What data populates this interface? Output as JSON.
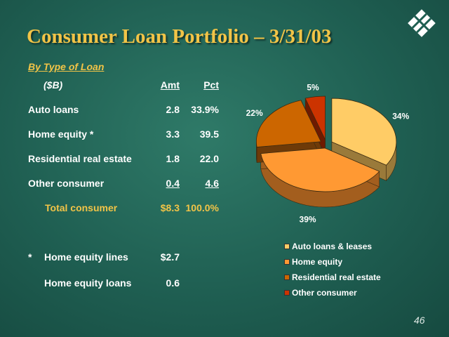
{
  "slide": {
    "title": "Consumer Loan Portfolio – 3/31/03",
    "subtitle": "By Type of Loan",
    "page_number": "46"
  },
  "table": {
    "header": {
      "label": "($B)",
      "amt": "Amt",
      "pct": "Pct"
    },
    "rows": [
      {
        "label": "Auto loans",
        "amt": "2.8",
        "pct": "33.9%"
      },
      {
        "label": "Home equity *",
        "amt": "3.3",
        "pct": "39.5"
      },
      {
        "label": "Residential real estate",
        "amt": "1.8",
        "pct": "22.0"
      },
      {
        "label": "Other consumer",
        "amt": "0.4",
        "pct": "4.6"
      }
    ],
    "total": {
      "label": "Total consumer",
      "amt": "$8.3",
      "pct": "100.0%"
    },
    "footnote": {
      "marker": "*",
      "rows": [
        {
          "label": "Home equity lines",
          "amt": "$2.7"
        },
        {
          "label": "Home equity loans",
          "amt": "0.6"
        }
      ]
    }
  },
  "colors": {
    "title": "#f2c447",
    "auto": "#ffcc66",
    "home_equity": "#ff9933",
    "residential": "#cc6600",
    "other": "#cc3300"
  },
  "chart_data": {
    "type": "pie",
    "title": "",
    "slices": [
      {
        "name": "Auto loans & leases",
        "value": 34,
        "label": "34%",
        "color": "#ffcc66",
        "side": "#9a7a3a"
      },
      {
        "name": "Home equity",
        "value": 39,
        "label": "39%",
        "color": "#ff9933",
        "side": "#a35e1e"
      },
      {
        "name": "Residential real estate",
        "value": 22,
        "label": "22%",
        "color": "#cc6600",
        "side": "#6e3a08"
      },
      {
        "name": "Other consumer",
        "value": 5,
        "label": "5%",
        "color": "#cc3300",
        "side": "#6e1a00"
      }
    ],
    "exploded": true,
    "style": "3d",
    "legend_position": "bottom"
  }
}
